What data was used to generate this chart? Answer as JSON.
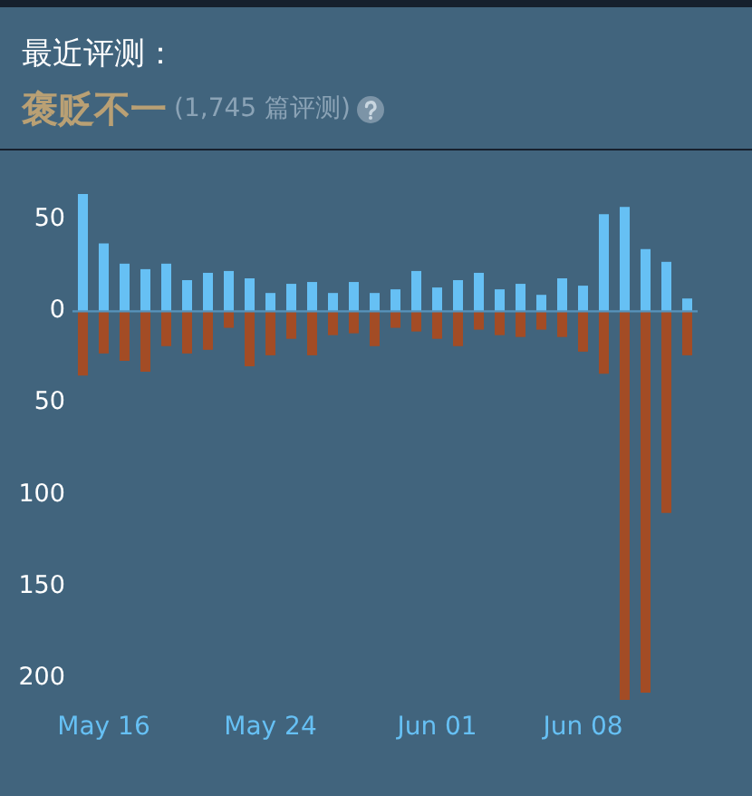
{
  "chart_data": {
    "type": "bar",
    "title": "最近评测：",
    "subtitle": "褒贬不一",
    "annotations": [
      "(1,745 篇评测)"
    ],
    "categories": [
      null,
      "May 16",
      null,
      null,
      null,
      null,
      null,
      null,
      null,
      "May 24",
      null,
      null,
      null,
      null,
      null,
      null,
      null,
      "Jun 01",
      null,
      null,
      null,
      null,
      null,
      null,
      "Jun 08",
      null,
      null,
      null,
      null,
      null
    ],
    "stacked": true,
    "series": [
      {
        "color": "#66c0f4",
        "values": [
          64,
          37,
          26,
          23,
          26,
          17,
          21,
          22,
          18,
          10,
          15,
          16,
          10,
          16,
          10,
          12,
          22,
          13,
          17,
          21,
          12,
          15,
          9,
          18,
          14,
          53,
          57,
          34,
          27,
          7
        ]
      },
      {
        "color": "#a34c25",
        "values": [
          -35,
          -23,
          -27,
          -33,
          -19,
          -23,
          -21,
          -9,
          -30,
          -24,
          -15,
          -24,
          -13,
          -12,
          -19,
          -9,
          -11,
          -15,
          -19,
          -10,
          -13,
          -14,
          -10,
          -14,
          -22,
          -34,
          -212,
          -208,
          -110,
          -24
        ]
      }
    ],
    "ylim": [
      -212,
      64
    ],
    "yticks": [
      {
        "value": -200,
        "label": "200"
      },
      {
        "value": -150,
        "label": "150"
      },
      {
        "value": -100,
        "label": "100"
      },
      {
        "value": -50,
        "label": "50"
      },
      0,
      50
    ],
    "ref_lines": [
      {
        "axis": "y",
        "value": 0,
        "color": "#5793bb"
      }
    ],
    "grid": false,
    "legend": false
  }
}
